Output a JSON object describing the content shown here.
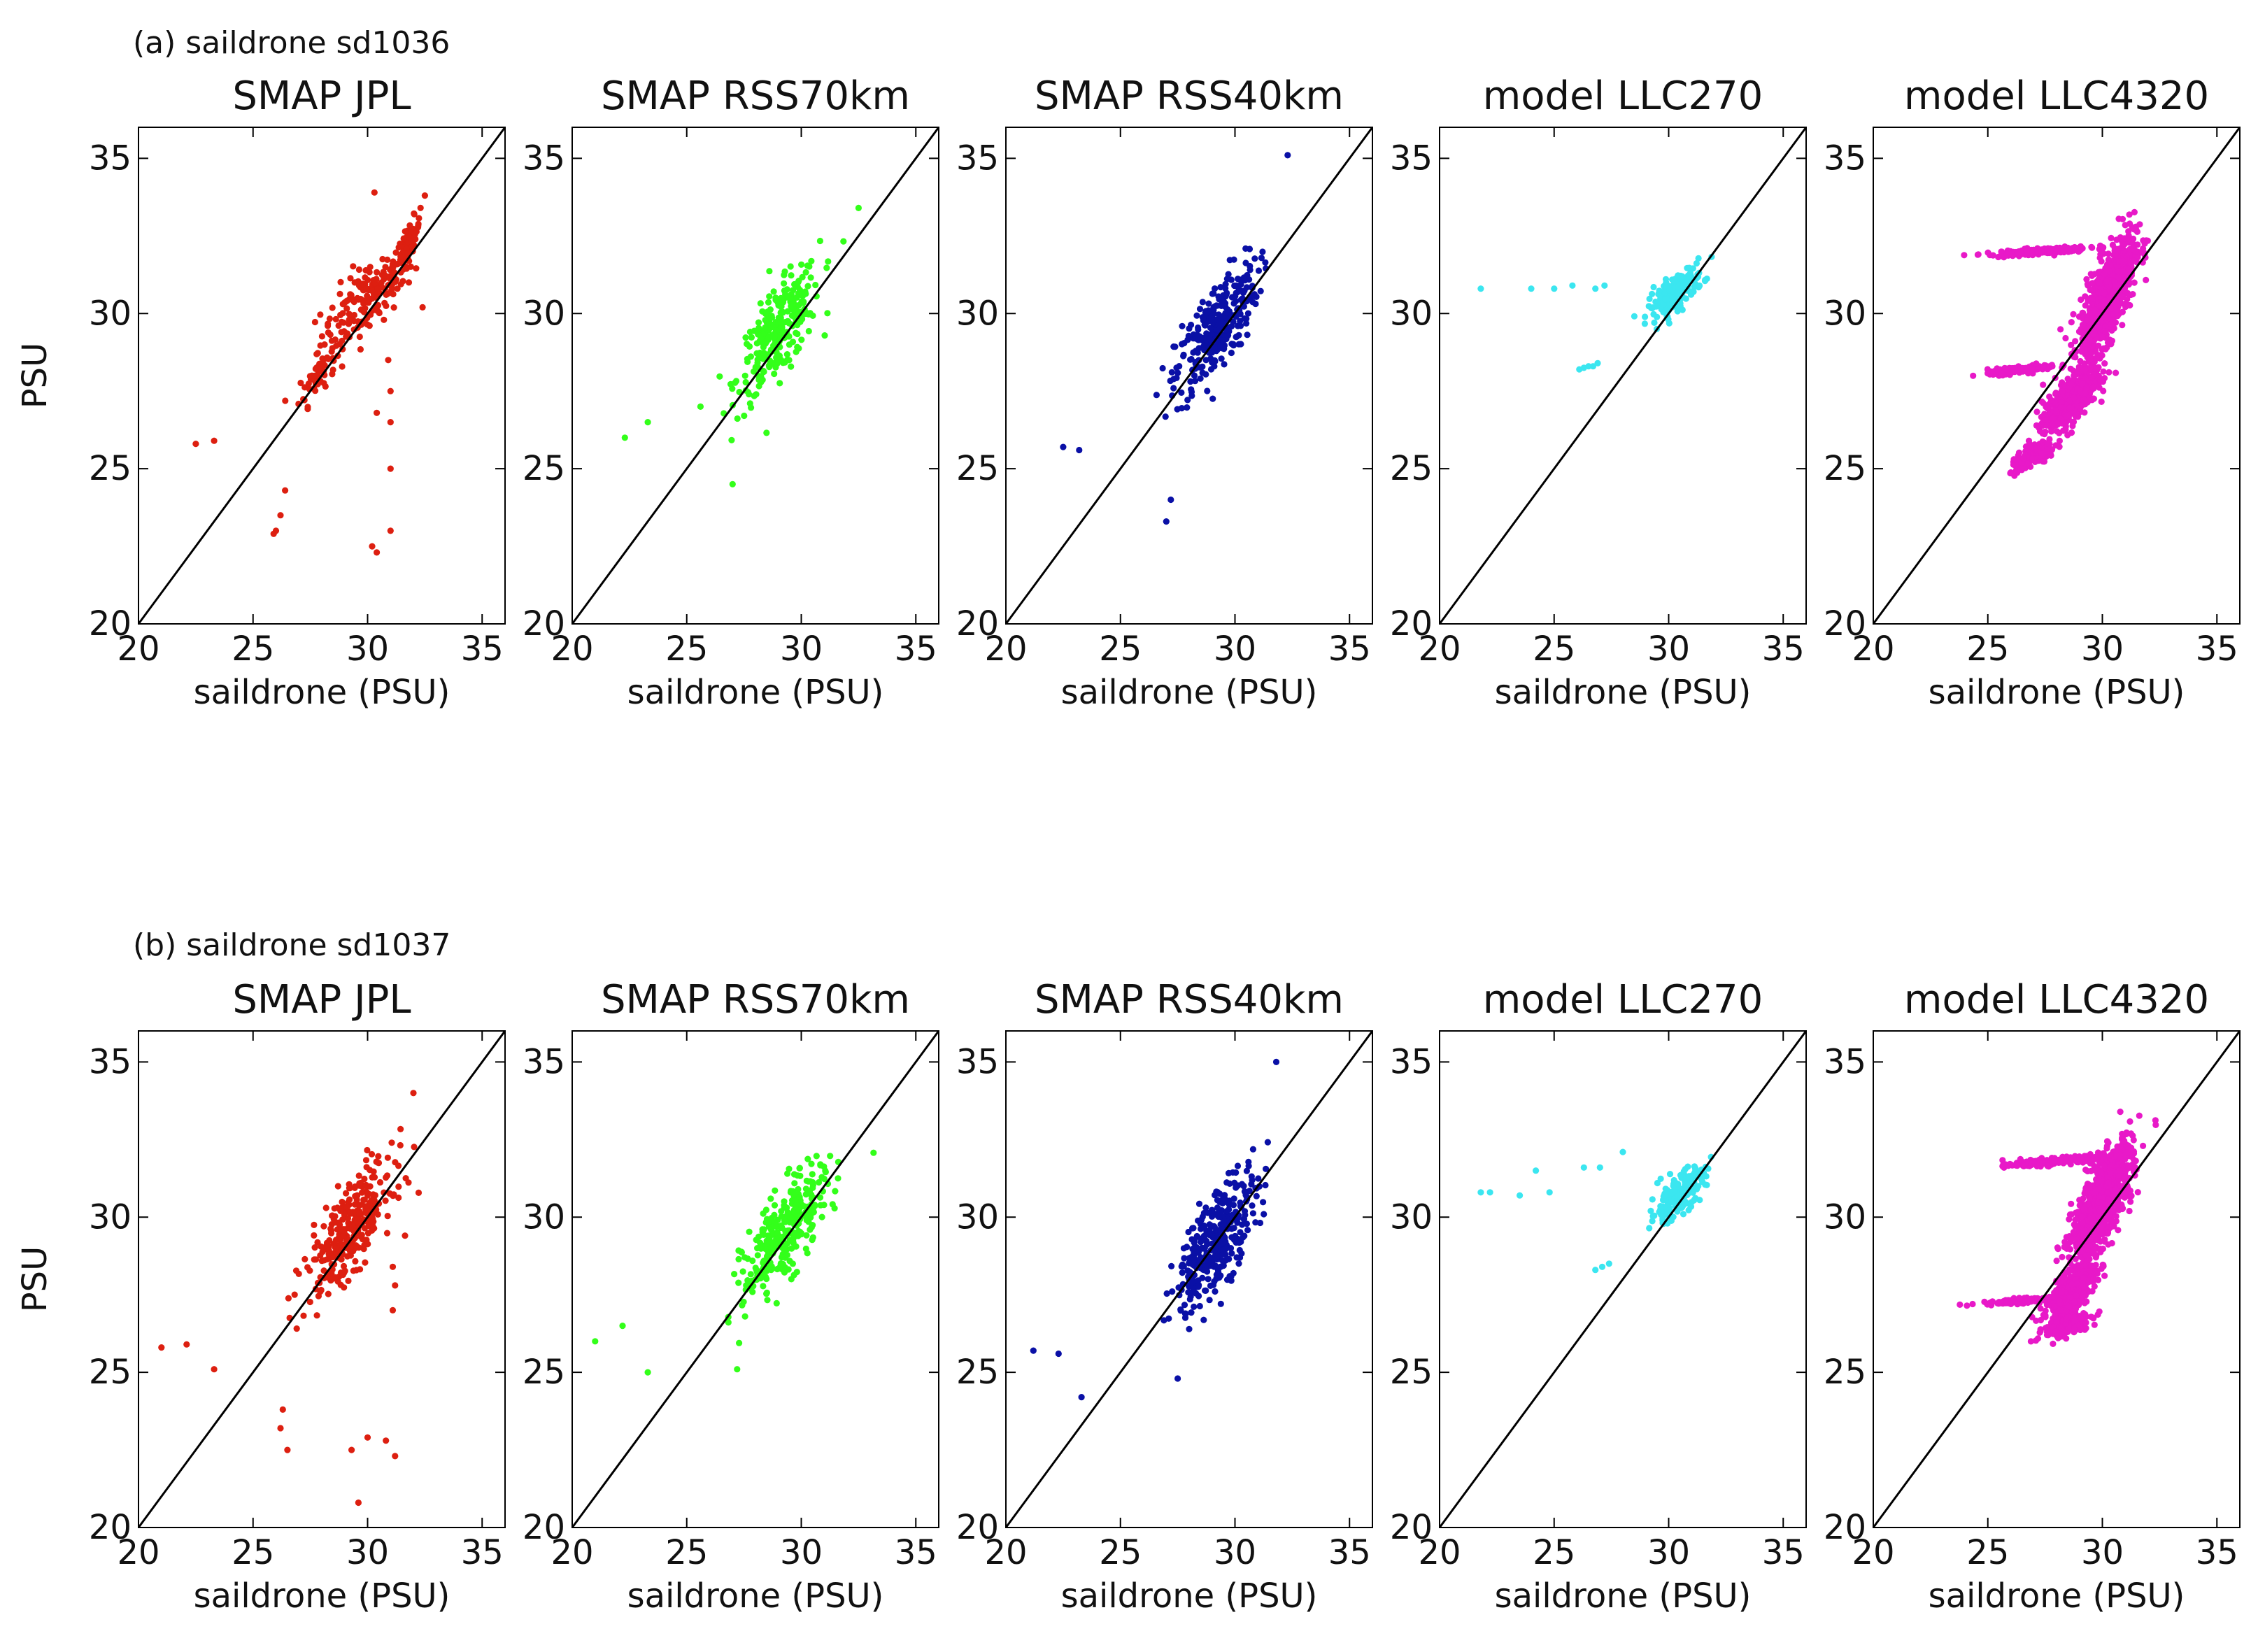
{
  "figure": {
    "rows": [
      {
        "label": "(a)  saildrone sd1036"
      },
      {
        "label": "(b)  saildrone sd1037"
      }
    ]
  },
  "chart_data": [
    {
      "type": "scatter",
      "row": 0,
      "title": "SMAP  JPL",
      "xlabel": "saildrone (PSU)",
      "ylabel": "PSU",
      "xlim": [
        20,
        36
      ],
      "ylim": [
        20,
        36
      ],
      "ticks": [
        20,
        25,
        30,
        35
      ],
      "color": "#dd1f10",
      "reference_line": "1:1",
      "clusters": [
        {
          "cx": 30,
          "cy": 30.5,
          "sx": 2.0,
          "sy": 1.6,
          "n": 170
        },
        {
          "cx": 27.8,
          "cy": 28,
          "sx": 0.8,
          "sy": 0.9,
          "n": 60
        },
        {
          "cx": 31.8,
          "cy": 32.3,
          "sx": 0.5,
          "sy": 0.8,
          "n": 70
        }
      ],
      "points": [
        [
          22.5,
          25.8
        ],
        [
          23.3,
          25.9
        ],
        [
          26,
          23
        ],
        [
          26.2,
          23.5
        ],
        [
          26.4,
          24.3
        ],
        [
          25.9,
          22.9
        ],
        [
          30.2,
          22.5
        ],
        [
          30.4,
          22.3
        ],
        [
          31,
          23
        ],
        [
          31,
          25
        ],
        [
          31,
          26.5
        ],
        [
          31,
          27.5
        ],
        [
          30.9,
          28.5
        ],
        [
          30.4,
          26.8
        ],
        [
          32.4,
          30.2
        ],
        [
          31.8,
          31
        ],
        [
          32.5,
          33.8
        ],
        [
          30.3,
          33.9
        ]
      ]
    },
    {
      "type": "scatter",
      "row": 0,
      "title": "SMAP  RSS70km",
      "xlabel": "saildrone (PSU)",
      "ylabel": "",
      "xlim": [
        20,
        36
      ],
      "ylim": [
        20,
        36
      ],
      "ticks": [
        20,
        25,
        30,
        35
      ],
      "color": "#33ff1a",
      "reference_line": "1:1",
      "clusters": [
        {
          "cx": 29,
          "cy": 29.4,
          "sx": 1.8,
          "sy": 2.0,
          "n": 280
        }
      ],
      "points": [
        [
          22.3,
          26.0
        ],
        [
          23.3,
          26.5
        ],
        [
          25.6,
          27
        ],
        [
          32.5,
          33.4
        ],
        [
          27,
          24.5
        ]
      ]
    },
    {
      "type": "scatter",
      "row": 0,
      "title": "SMAP  RSS40km",
      "xlabel": "saildrone (PSU)",
      "ylabel": "",
      "xlim": [
        20,
        36
      ],
      "ylim": [
        20,
        36
      ],
      "ticks": [
        20,
        25,
        30,
        35
      ],
      "color": "#0a10a6",
      "reference_line": "1:1",
      "clusters": [
        {
          "cx": 29.2,
          "cy": 29.5,
          "sx": 1.8,
          "sy": 2.1,
          "n": 300
        }
      ],
      "points": [
        [
          22.5,
          25.7
        ],
        [
          23.2,
          25.6
        ],
        [
          27,
          23.3
        ],
        [
          32.3,
          35.1
        ],
        [
          27.2,
          24
        ]
      ]
    },
    {
      "type": "scatter",
      "row": 0,
      "title": "model  LLC270",
      "xlabel": "saildrone (PSU)",
      "ylabel": "",
      "xlim": [
        20,
        36
      ],
      "ylim": [
        20,
        36
      ],
      "ticks": [
        20,
        25,
        30,
        35
      ],
      "color": "#3be6f0",
      "reference_line": "1:1",
      "clusters": [
        {
          "cx": 30.3,
          "cy": 30.7,
          "sx": 1.2,
          "sy": 0.8,
          "n": 180
        }
      ],
      "points": [
        [
          21.8,
          30.8
        ],
        [
          24,
          30.8
        ],
        [
          25,
          30.8
        ],
        [
          25.8,
          30.9
        ],
        [
          26.8,
          30.8
        ],
        [
          27.2,
          30.9
        ],
        [
          26.1,
          28.2
        ],
        [
          26.5,
          28.3
        ],
        [
          26.9,
          28.4
        ],
        [
          26.3,
          28.25
        ],
        [
          26.7,
          28.3
        ]
      ]
    },
    {
      "type": "scatter",
      "row": 0,
      "title": "model  LLC4320",
      "xlabel": "saildrone (PSU)",
      "ylabel": "",
      "xlim": [
        20,
        36
      ],
      "ylim": [
        20,
        36
      ],
      "ticks": [
        20,
        25,
        30,
        35
      ],
      "color": "#e819c8",
      "reference_line": "1:1",
      "clusters": [
        {
          "cx": 30.2,
          "cy": 30.5,
          "sx": 1.2,
          "sy": 1.9,
          "n": 900
        },
        {
          "cx": 28.6,
          "cy": 27.2,
          "sx": 1.2,
          "sy": 1.0,
          "n": 500
        },
        {
          "cx": 27.2,
          "cy": 32,
          "sx": 2.2,
          "sy": 0.15,
          "n": 180
        },
        {
          "cx": 26.5,
          "cy": 28.2,
          "sx": 1.5,
          "sy": 0.15,
          "n": 160
        },
        {
          "cx": 27,
          "cy": 25.4,
          "sx": 1.0,
          "sy": 0.5,
          "n": 150
        }
      ],
      "points": []
    },
    {
      "type": "scatter",
      "row": 1,
      "title": "SMAP  JPL",
      "xlabel": "saildrone (PSU)",
      "ylabel": "PSU",
      "xlim": [
        20,
        36
      ],
      "ylim": [
        20,
        36
      ],
      "ticks": [
        20,
        25,
        30,
        35
      ],
      "color": "#dd1f10",
      "reference_line": "1:1",
      "clusters": [
        {
          "cx": 29.2,
          "cy": 29.6,
          "sx": 1.9,
          "sy": 2.0,
          "n": 320
        }
      ],
      "points": [
        [
          21,
          25.8
        ],
        [
          22.1,
          25.9
        ],
        [
          23.3,
          25.1
        ],
        [
          26.2,
          23.2
        ],
        [
          26.3,
          23.8
        ],
        [
          26.5,
          22.5
        ],
        [
          29.3,
          22.5
        ],
        [
          29.6,
          20.8
        ],
        [
          30,
          22.9
        ],
        [
          30.8,
          22.8
        ],
        [
          31.2,
          22.3
        ],
        [
          31.1,
          27
        ],
        [
          31.2,
          27.8
        ],
        [
          31.1,
          28.4
        ],
        [
          32,
          34
        ]
      ]
    },
    {
      "type": "scatter",
      "row": 1,
      "title": "SMAP  RSS70km",
      "xlabel": "saildrone (PSU)",
      "ylabel": "",
      "xlim": [
        20,
        36
      ],
      "ylim": [
        20,
        36
      ],
      "ticks": [
        20,
        25,
        30,
        35
      ],
      "color": "#33ff1a",
      "reference_line": "1:1",
      "clusters": [
        {
          "cx": 29.3,
          "cy": 29.5,
          "sx": 1.8,
          "sy": 2.0,
          "n": 330
        }
      ],
      "points": [
        [
          21,
          26
        ],
        [
          22.2,
          26.5
        ],
        [
          23.3,
          25
        ],
        [
          27.2,
          25.1
        ]
      ]
    },
    {
      "type": "scatter",
      "row": 1,
      "title": "SMAP  RSS40km",
      "xlabel": "saildrone (PSU)",
      "ylabel": "",
      "xlim": [
        20,
        36
      ],
      "ylim": [
        20,
        36
      ],
      "ticks": [
        20,
        25,
        30,
        35
      ],
      "color": "#0a10a6",
      "reference_line": "1:1",
      "clusters": [
        {
          "cx": 29.2,
          "cy": 29.3,
          "sx": 1.8,
          "sy": 2.2,
          "n": 360
        }
      ],
      "points": [
        [
          21.2,
          25.7
        ],
        [
          22.3,
          25.6
        ],
        [
          23.3,
          24.2
        ],
        [
          31.8,
          35
        ],
        [
          27.5,
          24.8
        ]
      ]
    },
    {
      "type": "scatter",
      "row": 1,
      "title": "model  LLC270",
      "xlabel": "saildrone (PSU)",
      "ylabel": "",
      "xlim": [
        20,
        36
      ],
      "ylim": [
        20,
        36
      ],
      "ticks": [
        20,
        25,
        30,
        35
      ],
      "color": "#3be6f0",
      "reference_line": "1:1",
      "clusters": [
        {
          "cx": 30.4,
          "cy": 30.7,
          "sx": 1.2,
          "sy": 0.9,
          "n": 200
        }
      ],
      "points": [
        [
          21.8,
          30.8
        ],
        [
          22.2,
          30.8
        ],
        [
          23.5,
          30.7
        ],
        [
          24.2,
          31.5
        ],
        [
          24.8,
          30.8
        ],
        [
          26.3,
          31.6
        ],
        [
          27,
          31.6
        ],
        [
          26.8,
          28.3
        ],
        [
          27.1,
          28.4
        ],
        [
          27.4,
          28.5
        ],
        [
          28,
          32.1
        ]
      ]
    },
    {
      "type": "scatter",
      "row": 1,
      "title": "model  LLC4320",
      "xlabel": "saildrone (PSU)",
      "ylabel": "",
      "xlim": [
        20,
        36
      ],
      "ylim": [
        20,
        36
      ],
      "ticks": [
        20,
        25,
        30,
        35
      ],
      "color": "#e819c8",
      "reference_line": "1:1",
      "clusters": [
        {
          "cx": 30,
          "cy": 30.5,
          "sx": 1.3,
          "sy": 1.8,
          "n": 950
        },
        {
          "cx": 28.6,
          "cy": 27.5,
          "sx": 1.1,
          "sy": 1.0,
          "n": 450
        },
        {
          "cx": 28,
          "cy": 31.8,
          "sx": 2.0,
          "sy": 0.15,
          "n": 220
        },
        {
          "cx": 26.5,
          "cy": 27.3,
          "sx": 1.8,
          "sy": 0.12,
          "n": 150
        },
        {
          "cx": 28.5,
          "cy": 26.5,
          "sx": 1.0,
          "sy": 0.4,
          "n": 160
        }
      ],
      "points": []
    }
  ]
}
